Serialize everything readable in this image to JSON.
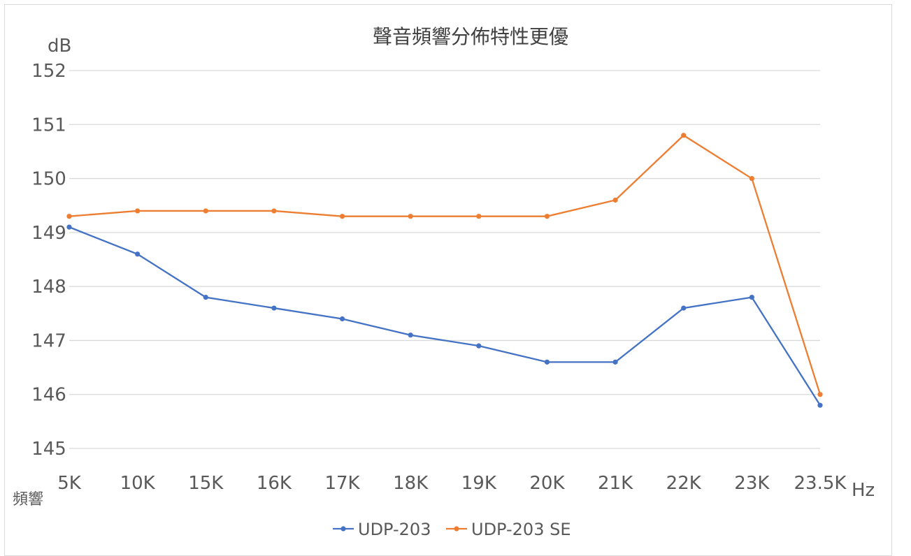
{
  "chart_data": {
    "type": "line",
    "title": "聲音頻響分佈特性更優",
    "ylabel": "dB",
    "xlabel": "Hz",
    "xlabel_left": "頻響",
    "categories": [
      "5K",
      "10K",
      "15K",
      "16K",
      "17K",
      "18K",
      "19K",
      "20K",
      "21K",
      "22K",
      "23K",
      "23.5K"
    ],
    "ylim": [
      145,
      152
    ],
    "yticks": [
      145,
      146,
      147,
      148,
      149,
      150,
      151,
      152
    ],
    "grid": true,
    "legend_position": "bottom",
    "series": [
      {
        "name": "UDP-203",
        "color": "#4472c4",
        "values": [
          149.1,
          148.6,
          147.8,
          147.6,
          147.4,
          147.1,
          146.9,
          146.6,
          146.6,
          147.6,
          147.8,
          145.8
        ]
      },
      {
        "name": "UDP-203 SE",
        "color": "#ed7d31",
        "values": [
          149.3,
          149.4,
          149.4,
          149.4,
          149.3,
          149.3,
          149.3,
          149.3,
          149.6,
          150.8,
          150.0,
          146.0
        ]
      }
    ]
  }
}
